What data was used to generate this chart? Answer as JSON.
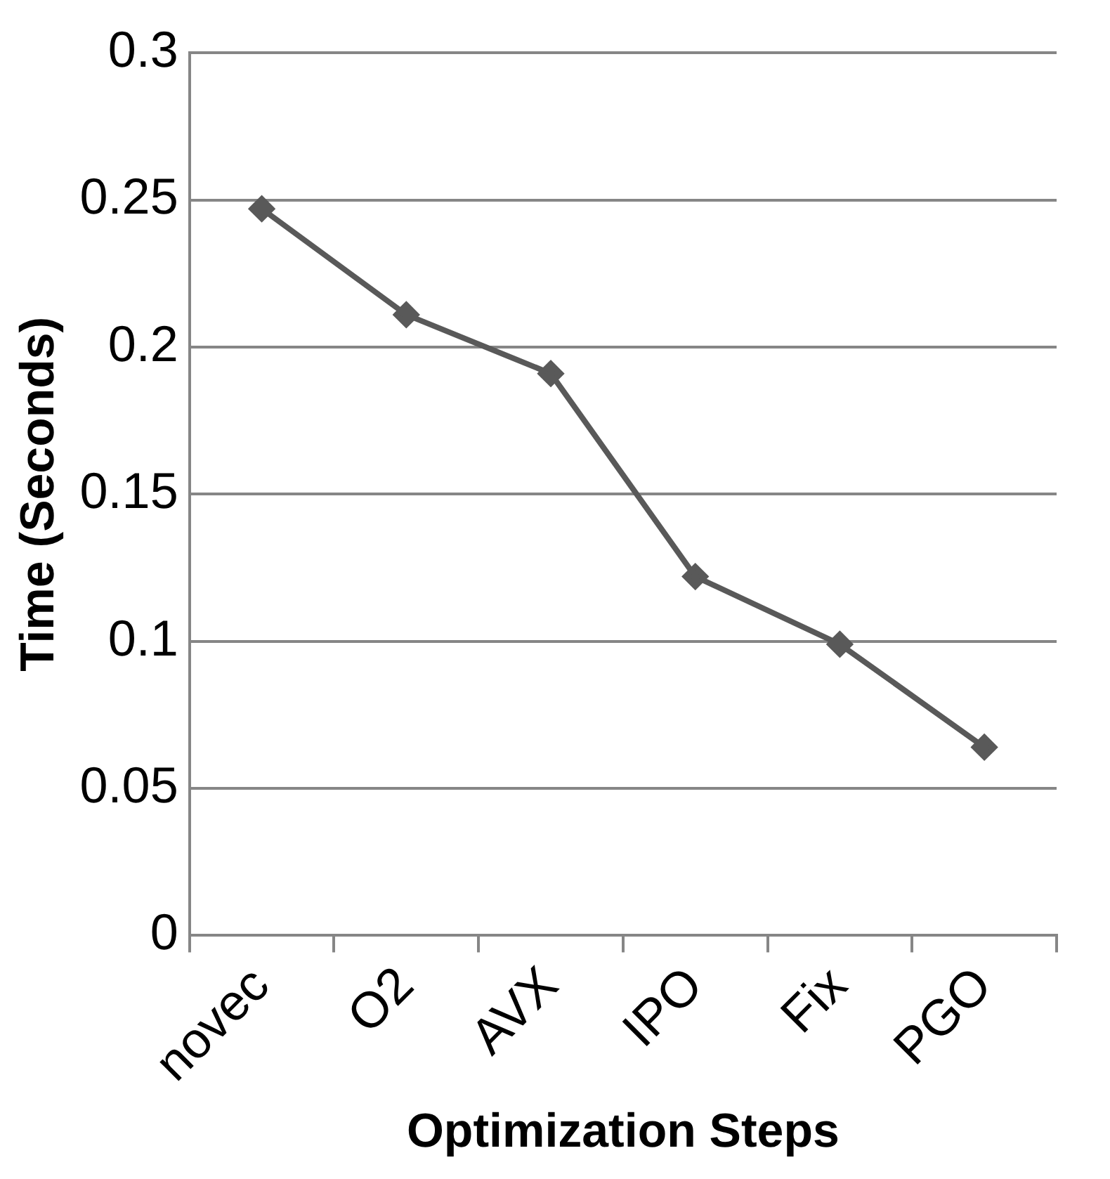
{
  "chart_data": {
    "type": "line",
    "xlabel": "Optimization Steps",
    "ylabel": "Time (Seconds)",
    "categories": [
      "novec",
      "O2",
      "AVX",
      "IPO",
      "Fix",
      "PGO"
    ],
    "series": [
      {
        "color": "#595959",
        "values": [
          0.247,
          0.211,
          0.191,
          0.122,
          0.099,
          0.064
        ]
      }
    ],
    "ylim": [
      0,
      0.3
    ],
    "yticks": [
      0,
      0.05,
      0.1,
      0.15,
      0.2,
      0.25,
      0.3
    ],
    "grid": "y",
    "legend": false,
    "marker": "diamond",
    "line_style": "solid"
  }
}
